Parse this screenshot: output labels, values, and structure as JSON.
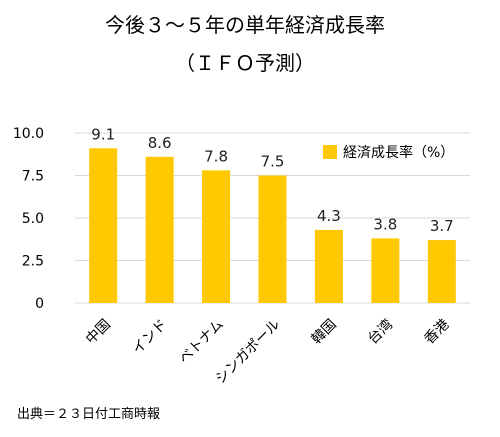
{
  "chart_data": {
    "type": "bar",
    "title": "今後３～５年の単年経済成長率",
    "subtitle": "（ＩＦＯ予測）",
    "categories": [
      "中国",
      "インド",
      "ベトナム",
      "シンガポール",
      "韓国",
      "台湾",
      "香港"
    ],
    "series": [
      {
        "name": "経済成長率（%）",
        "values": [
          9.1,
          8.6,
          7.8,
          7.5,
          4.3,
          3.8,
          3.7
        ],
        "color": "#FFC800"
      }
    ],
    "data_labels": [
      "9.1",
      "8.6",
      "7.8",
      "7.5",
      "4.3",
      "3.8",
      "3.7"
    ],
    "yticks": [
      "0",
      "2.5",
      "5.0",
      "7.5",
      "10.0"
    ],
    "ytick_values": [
      0,
      2.5,
      5.0,
      7.5,
      10.0
    ],
    "ylim": [
      0,
      10
    ],
    "grid": true,
    "legend_position": "top-right",
    "source": "出典＝２３日付工商時報"
  }
}
